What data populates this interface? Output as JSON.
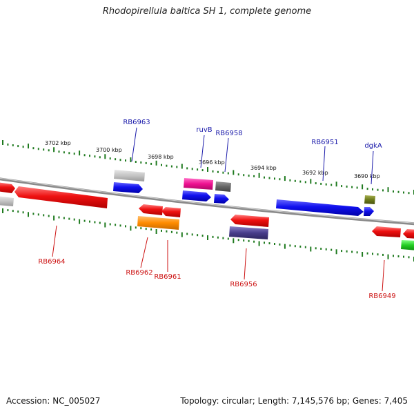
{
  "title": "Rhodopirellula baltica SH 1, complete genome",
  "footer": {
    "accession": "Accession: NC_005027",
    "summary": "Topology: circular; Length: 7,145,576 bp; Genes: 7,405"
  },
  "scale_ticks": [
    "3702 kbp",
    "3700 kbp",
    "3698 kbp",
    "3696 kbp",
    "3694 kbp",
    "3692 kbp",
    "3690 kbp"
  ],
  "colors": {
    "forward_label": "#1a1aaa",
    "reverse_label": "#cc1111",
    "tick": "#1f7a1f",
    "backbone": "#8a8a8a"
  },
  "forward_labels": [
    "RB6963",
    "ruvB",
    "RB6958",
    "RB6951",
    "dgkA"
  ],
  "reverse_labels": [
    "RB6964",
    "RB6962",
    "RB6961",
    "RB6956",
    "RB6949"
  ]
}
